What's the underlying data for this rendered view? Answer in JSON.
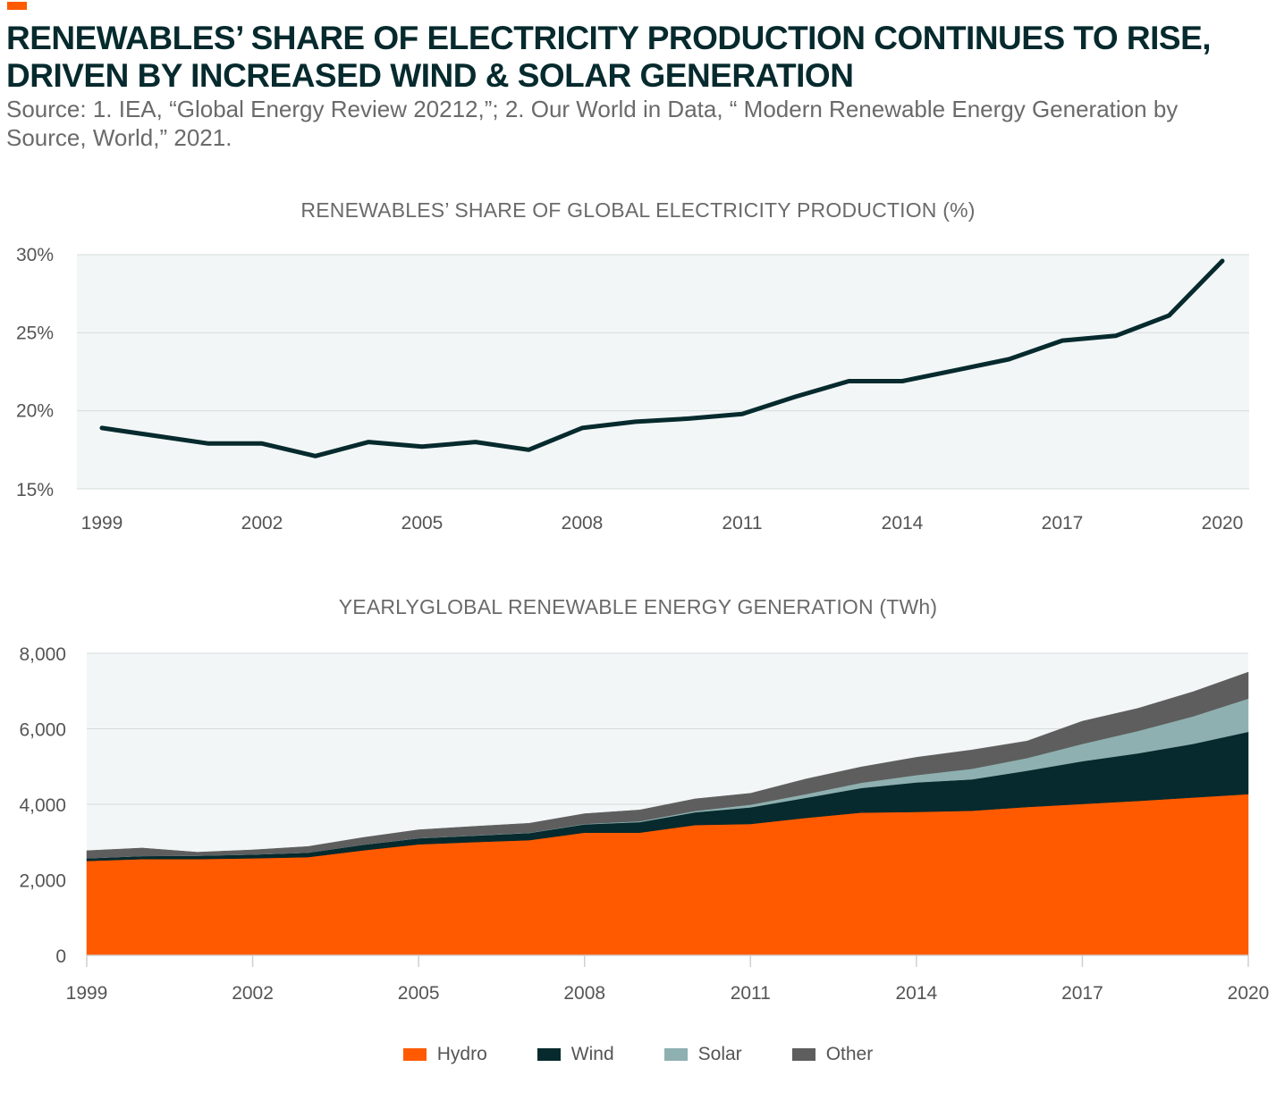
{
  "header": {
    "title_line1": "RENEWABLES’ SHARE OF ELECTRICITY PRODUCTION CONTINUES TO RISE,",
    "title_line2": "DRIVEN BY INCREASED WIND & SOLAR GENERATION",
    "source_line1": "Source: 1. IEA, “Global Energy Review 20212,”; 2. Our World in Data, “ Modern Renewable Energy Generation by",
    "source_line2": "Source, World,” 2021.",
    "accent_color": "#ff5a00"
  },
  "chart_data": [
    {
      "type": "line",
      "title": "RENEWABLES’ SHARE OF GLOBAL ELECTRICITY PRODUCTION (%)",
      "x": [
        1999,
        2000,
        2001,
        2002,
        2003,
        2004,
        2005,
        2006,
        2007,
        2008,
        2009,
        2010,
        2011,
        2012,
        2013,
        2014,
        2015,
        2016,
        2017,
        2018,
        2019,
        2020
      ],
      "series": [
        {
          "values": [
            18.9,
            18.4,
            17.9,
            17.9,
            17.1,
            18.0,
            17.7,
            18.0,
            17.5,
            18.9,
            19.3,
            19.5,
            19.8,
            20.9,
            21.9,
            21.9,
            22.6,
            23.3,
            24.5,
            24.8,
            26.1,
            29.6
          ],
          "color": "#062a2d"
        }
      ],
      "ylim": [
        15,
        30
      ],
      "yticks": [
        15,
        20,
        25,
        30
      ],
      "ytick_labels": [
        "15%",
        "20%",
        "25%",
        "30%"
      ],
      "xticks": [
        1999,
        2002,
        2005,
        2008,
        2011,
        2014,
        2017,
        2020
      ],
      "xtick_labels": [
        "1999",
        "2002",
        "2005",
        "2008",
        "2011",
        "2014",
        "2017",
        "2020"
      ],
      "grid": true,
      "background": "#f2f6f6"
    },
    {
      "type": "area",
      "stacked": true,
      "title": "YEARLYGLOBAL RENEWABLE ENERGY GENERATION (TWh)",
      "x": [
        1999,
        2000,
        2001,
        2002,
        2003,
        2004,
        2005,
        2006,
        2007,
        2008,
        2009,
        2010,
        2011,
        2012,
        2013,
        2014,
        2015,
        2016,
        2017,
        2018,
        2019,
        2020
      ],
      "series": [
        {
          "name": "Hydro",
          "color": "#ff5a00",
          "values": [
            2500,
            2550,
            2550,
            2570,
            2600,
            2780,
            2940,
            3000,
            3050,
            3250,
            3250,
            3450,
            3480,
            3640,
            3780,
            3800,
            3830,
            3930,
            4010,
            4090,
            4180,
            4270
          ]
        },
        {
          "name": "Wind",
          "color": "#062a2d",
          "values": [
            70,
            80,
            90,
            100,
            120,
            150,
            160,
            170,
            190,
            220,
            280,
            340,
            440,
            530,
            650,
            780,
            830,
            960,
            1130,
            1260,
            1420,
            1650
          ]
        },
        {
          "name": "Solar",
          "color": "#8fb0b0",
          "values": [
            2,
            2,
            2,
            2,
            2,
            3,
            5,
            6,
            8,
            12,
            22,
            35,
            70,
            100,
            140,
            195,
            280,
            335,
            460,
            590,
            730,
            880
          ]
        },
        {
          "name": "Other",
          "color": "#5e5e5e",
          "values": [
            200,
            210,
            90,
            120,
            160,
            190,
            220,
            240,
            250,
            270,
            300,
            320,
            300,
            400,
            420,
            470,
            500,
            450,
            600,
            600,
            650,
            700
          ]
        }
      ],
      "ylim": [
        0,
        8000
      ],
      "yticks": [
        0,
        2000,
        4000,
        6000,
        8000
      ],
      "ytick_labels": [
        "0",
        "2,000",
        "4,000",
        "6,000",
        "8,000"
      ],
      "xticks": [
        1999,
        2002,
        2005,
        2008,
        2011,
        2014,
        2017,
        2020
      ],
      "xtick_labels": [
        "1999",
        "2002",
        "2005",
        "2008",
        "2011",
        "2014",
        "2017",
        "2020"
      ],
      "grid": true,
      "background": "#f2f6f6",
      "legend": "bottom"
    }
  ]
}
